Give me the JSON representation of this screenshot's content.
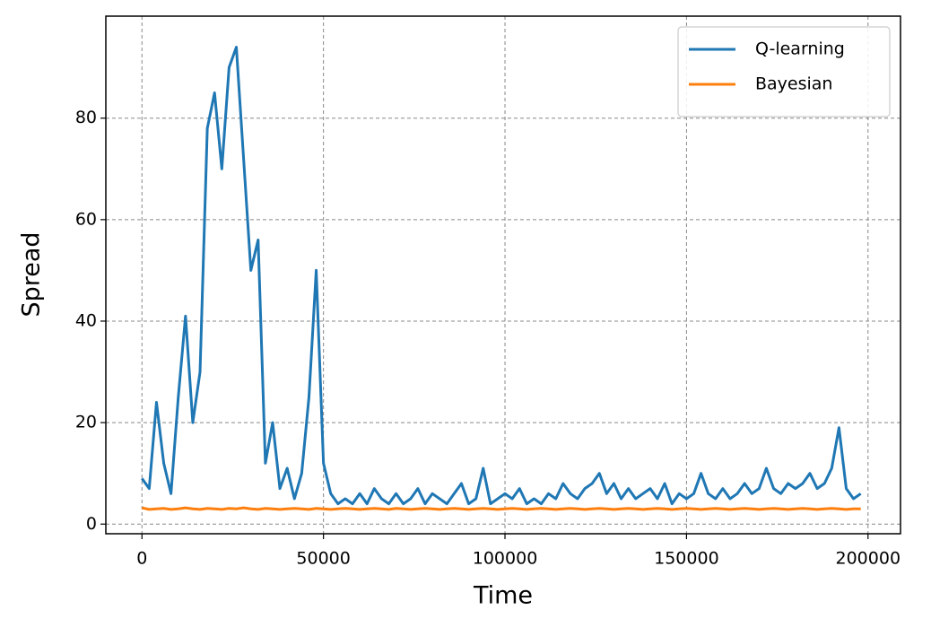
{
  "chart_data": {
    "type": "line",
    "xlabel": "Time",
    "ylabel": "Spread",
    "x": [
      0,
      2000,
      4000,
      6000,
      8000,
      10000,
      12000,
      14000,
      16000,
      18000,
      20000,
      22000,
      24000,
      26000,
      28000,
      30000,
      32000,
      34000,
      36000,
      38000,
      40000,
      42000,
      44000,
      46000,
      48000,
      50000,
      52000,
      54000,
      56000,
      58000,
      60000,
      62000,
      64000,
      66000,
      68000,
      70000,
      72000,
      74000,
      76000,
      78000,
      80000,
      82000,
      84000,
      86000,
      88000,
      90000,
      92000,
      94000,
      96000,
      98000,
      100000,
      102000,
      104000,
      106000,
      108000,
      110000,
      112000,
      114000,
      116000,
      118000,
      120000,
      122000,
      124000,
      126000,
      128000,
      130000,
      132000,
      134000,
      136000,
      138000,
      140000,
      142000,
      144000,
      146000,
      148000,
      150000,
      152000,
      154000,
      156000,
      158000,
      160000,
      162000,
      164000,
      166000,
      168000,
      170000,
      172000,
      174000,
      176000,
      178000,
      180000,
      182000,
      184000,
      186000,
      188000,
      190000,
      192000,
      194000,
      196000,
      198000
    ],
    "series": [
      {
        "name": "Q-learning",
        "color": "#1f77b4",
        "values": [
          9,
          7,
          24,
          12,
          6,
          25,
          41,
          20,
          30,
          78,
          85,
          70,
          90,
          94,
          72,
          50,
          56,
          12,
          20,
          7,
          11,
          5,
          10,
          25,
          50,
          12,
          6,
          4,
          5,
          4,
          6,
          4,
          7,
          5,
          4,
          6,
          4,
          5,
          7,
          4,
          6,
          5,
          4,
          6,
          8,
          4,
          5,
          11,
          4,
          5,
          6,
          5,
          7,
          4,
          5,
          4,
          6,
          5,
          8,
          6,
          5,
          7,
          8,
          10,
          6,
          8,
          5,
          7,
          5,
          6,
          7,
          5,
          8,
          4,
          6,
          5,
          6,
          10,
          6,
          5,
          7,
          5,
          6,
          8,
          6,
          7,
          11,
          7,
          6,
          8,
          7,
          8,
          10,
          7,
          8,
          11,
          19,
          7,
          5,
          6
        ]
      },
      {
        "name": "Bayesian",
        "color": "#ff7f0e",
        "values": [
          3.2,
          2.9,
          3.0,
          3.1,
          2.9,
          3.0,
          3.2,
          3.0,
          2.9,
          3.1,
          3.0,
          2.9,
          3.1,
          3.0,
          3.2,
          3.0,
          2.9,
          3.1,
          3.0,
          2.9,
          3.0,
          3.1,
          3.0,
          2.9,
          3.1,
          3.0,
          2.9,
          3.0,
          3.1,
          3.0,
          2.9,
          3.0,
          3.1,
          3.0,
          2.9,
          3.1,
          3.0,
          2.9,
          3.0,
          3.1,
          3.0,
          2.9,
          3.0,
          3.1,
          3.0,
          2.9,
          3.0,
          3.1,
          3.0,
          2.9,
          3.0,
          3.1,
          3.0,
          2.9,
          3.0,
          3.1,
          3.0,
          2.9,
          3.0,
          3.1,
          3.0,
          2.9,
          3.0,
          3.1,
          3.0,
          2.9,
          3.0,
          3.1,
          3.0,
          2.9,
          3.0,
          3.1,
          3.0,
          2.9,
          3.0,
          3.1,
          3.0,
          2.9,
          3.0,
          3.1,
          3.0,
          2.9,
          3.0,
          3.1,
          3.0,
          2.9,
          3.0,
          3.1,
          3.0,
          2.9,
          3.0,
          3.1,
          3.0,
          2.9,
          3.0,
          3.1,
          3.0,
          2.9,
          3.0,
          3.0
        ]
      }
    ],
    "xlim": [
      -9950,
      208950
    ],
    "ylim": [
      -1.9,
      100.1
    ],
    "xticks": [
      0,
      50000,
      100000,
      150000,
      200000
    ],
    "yticks": [
      0,
      20,
      40,
      60,
      80
    ],
    "grid": true,
    "legend": "upper right"
  }
}
